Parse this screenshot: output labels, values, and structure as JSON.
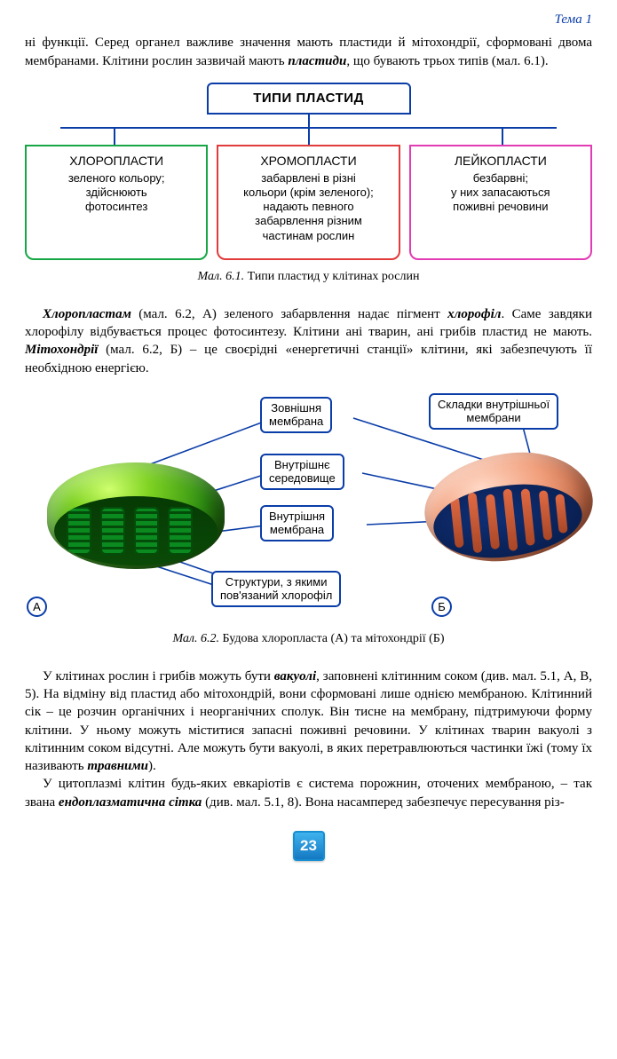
{
  "topic": "Тема 1",
  "intro_html": "ні функції. Серед органел важливе значення мають пластиди й мітохондрії, сформовані двома мембранами. Клітини рослин зазвичай мають <span class='bi'>пластиди</span>, що бувають трьох типів (мал. 6.1).",
  "diagram1": {
    "root": "ТИПИ ПЛАСТИД",
    "cards": [
      {
        "title": "ХЛОРОПЛАСТИ",
        "body": "зеленого кольору;<br>здійснюють<br>фотосинтез",
        "color": "#17a646"
      },
      {
        "title": "ХРОМОПЛАСТИ",
        "body": "забарвлені в різні<br>кольори (крім зеленого);<br>надають певного<br>забарвлення різним<br>частинам рослин",
        "color": "#e23b3b"
      },
      {
        "title": "ЛЕЙКОПЛАСТИ",
        "body": "безбарвні;<br>у них запасаються<br>поживні речовини",
        "color": "#e23bb3"
      }
    ],
    "caption_num": "Мал. 6.1.",
    "caption_text": "Типи пластид у клітинах рослин"
  },
  "midpara_html": "<span class='first-indent'></span><span class='bi'>Хлоропластам</span> (мал. 6.2, А) зеленого забарвлення надає пігмент <span class='bi'>хлорофіл</span>. Саме завдяки хлорофілу відбувається процес фотосинтезу. Клітини ані тварин, ані грибів пластид не мають. <span class='bi'>Мітохондрії</span> (мал. 6.2, Б) – це своєрідні «енергетичні станції» клітини, які забезпечують її необхідною енергією.",
  "diagram2": {
    "labels": {
      "outer_membrane": "Зовнішня<br>мембрана",
      "inner_folds": "Складки внутрішньої<br>мембрани",
      "matrix": "Внутрішнє<br>середовище",
      "inner_membrane": "Внутрішня<br>мембрана",
      "chlorophyll": "Структури, з якими<br>пов'язаний хлорофіл"
    },
    "A": "А",
    "B": "Б",
    "caption_num": "Мал. 6.2.",
    "caption_text": "Будова хлоропласта (А) та мітохондрії (Б)",
    "line_color": "#0a3da8"
  },
  "tail": [
    "<span class='first-indent'></span>У клітинах рослин і грибів можуть бути <span class='bi'>вакуолі</span>, заповнені клітинним соком (див. мал. 5.1, А, В, 5). На відміну від пластид або мітохондрій, вони сформовані лише однією мембраною. Клітинний сік – це розчин органічних і неорганічних сполук. Він тисне на мембрану, підтримуючи форму клітини. У ньому можуть міститися запасні поживні речовини. У клітинах тварин вакуолі з клітинним соком відсутні. Але можуть бути вакуолі, в яких перетравлюються частинки їжі (тому їх називають <span class='bi'>травними</span>).",
    "<span class='first-indent'></span>У цитоплазмі клітин будь-яких евкаріотів є система порожнин, оточених мембраною, – так звана <span class='bi'>ендоплазматична сітка</span> (див. мал. 5.1, 8). Вона насамперед забезпечує пересування різ-"
  ],
  "page_number": "23"
}
